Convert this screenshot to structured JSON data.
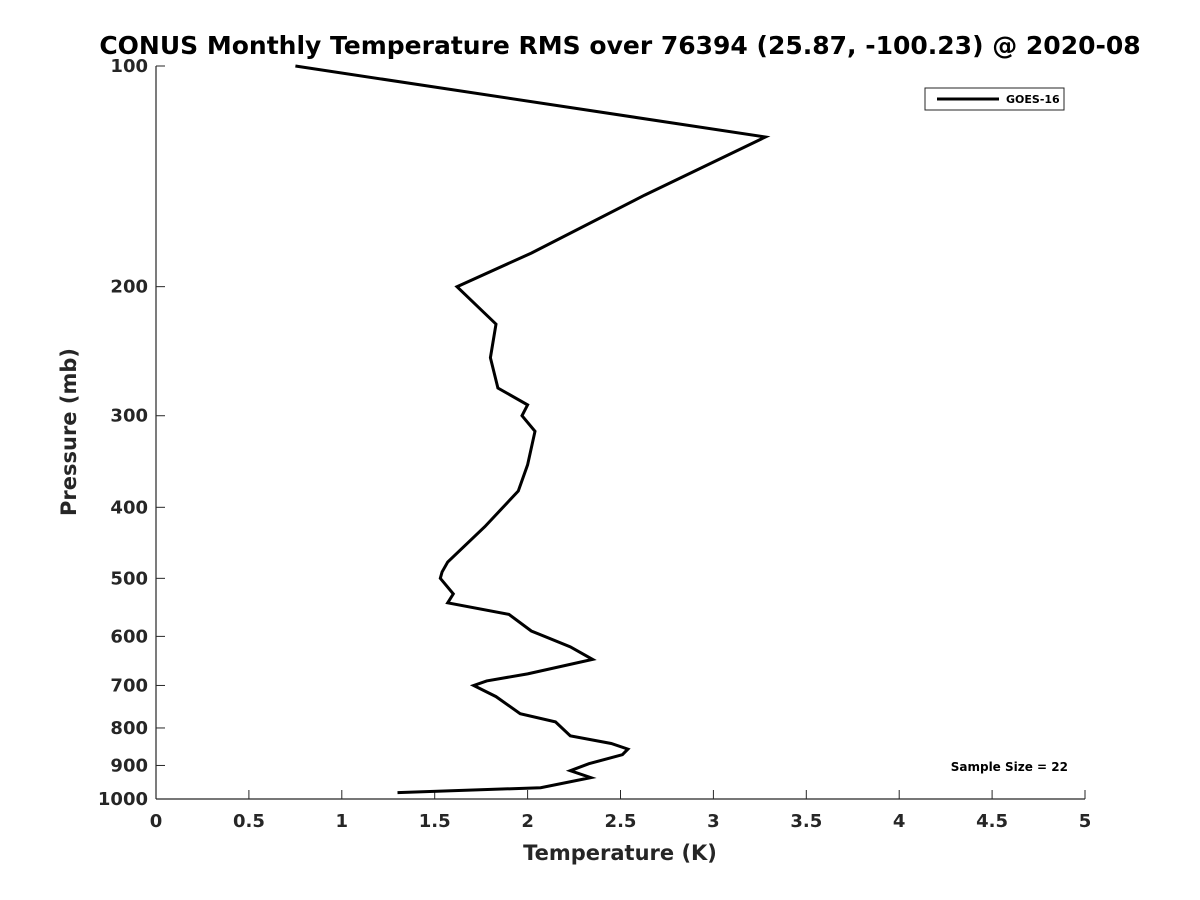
{
  "chart_data": {
    "type": "line",
    "title": "CONUS Monthly Temperature RMS over 76394 (25.87, -100.23) @ 2020-08",
    "xlabel": "Temperature (K)",
    "ylabel": "Pressure (mb)",
    "xlim": [
      0,
      5
    ],
    "ylim": [
      100,
      1000
    ],
    "y_scale": "log",
    "y_reversed": true,
    "grid": false,
    "legend_position": "top-right",
    "x_ticks": [
      0,
      0.5,
      1,
      1.5,
      2,
      2.5,
      3,
      3.5,
      4,
      4.5,
      5
    ],
    "x_tick_labels": [
      "0",
      "0.5",
      "1",
      "1.5",
      "2",
      "2.5",
      "3",
      "3.5",
      "4",
      "4.5",
      "5"
    ],
    "y_ticks": [
      100,
      200,
      300,
      400,
      500,
      600,
      700,
      800,
      900,
      1000
    ],
    "y_tick_labels": [
      "100",
      "200",
      "300",
      "400",
      "500",
      "600",
      "700",
      "800",
      "900",
      "1000"
    ],
    "annotation": "Sample Size = 22",
    "colors": {
      "line": "#000000",
      "axis": "#262626"
    },
    "series": [
      {
        "name": "GOES-16",
        "points": [
          {
            "x": 0.75,
            "y": 100
          },
          {
            "x": 3.28,
            "y": 125
          },
          {
            "x": 2.63,
            "y": 150
          },
          {
            "x": 2.02,
            "y": 180
          },
          {
            "x": 1.62,
            "y": 200
          },
          {
            "x": 1.83,
            "y": 225
          },
          {
            "x": 1.8,
            "y": 250
          },
          {
            "x": 1.84,
            "y": 275
          },
          {
            "x": 2.0,
            "y": 290
          },
          {
            "x": 1.97,
            "y": 300
          },
          {
            "x": 2.04,
            "y": 315
          },
          {
            "x": 2.0,
            "y": 350
          },
          {
            "x": 1.95,
            "y": 380
          },
          {
            "x": 1.77,
            "y": 425
          },
          {
            "x": 1.57,
            "y": 475
          },
          {
            "x": 1.54,
            "y": 490
          },
          {
            "x": 1.53,
            "y": 500
          },
          {
            "x": 1.6,
            "y": 525
          },
          {
            "x": 1.57,
            "y": 540
          },
          {
            "x": 1.9,
            "y": 560
          },
          {
            "x": 2.02,
            "y": 590
          },
          {
            "x": 2.23,
            "y": 620
          },
          {
            "x": 2.35,
            "y": 645
          },
          {
            "x": 2.0,
            "y": 675
          },
          {
            "x": 1.78,
            "y": 690
          },
          {
            "x": 1.71,
            "y": 700
          },
          {
            "x": 1.83,
            "y": 725
          },
          {
            "x": 1.96,
            "y": 765
          },
          {
            "x": 2.15,
            "y": 785
          },
          {
            "x": 2.23,
            "y": 820
          },
          {
            "x": 2.45,
            "y": 840
          },
          {
            "x": 2.54,
            "y": 855
          },
          {
            "x": 2.51,
            "y": 870
          },
          {
            "x": 2.33,
            "y": 895
          },
          {
            "x": 2.23,
            "y": 915
          },
          {
            "x": 2.34,
            "y": 935
          },
          {
            "x": 2.07,
            "y": 965
          },
          {
            "x": 1.3,
            "y": 980
          }
        ]
      }
    ]
  }
}
